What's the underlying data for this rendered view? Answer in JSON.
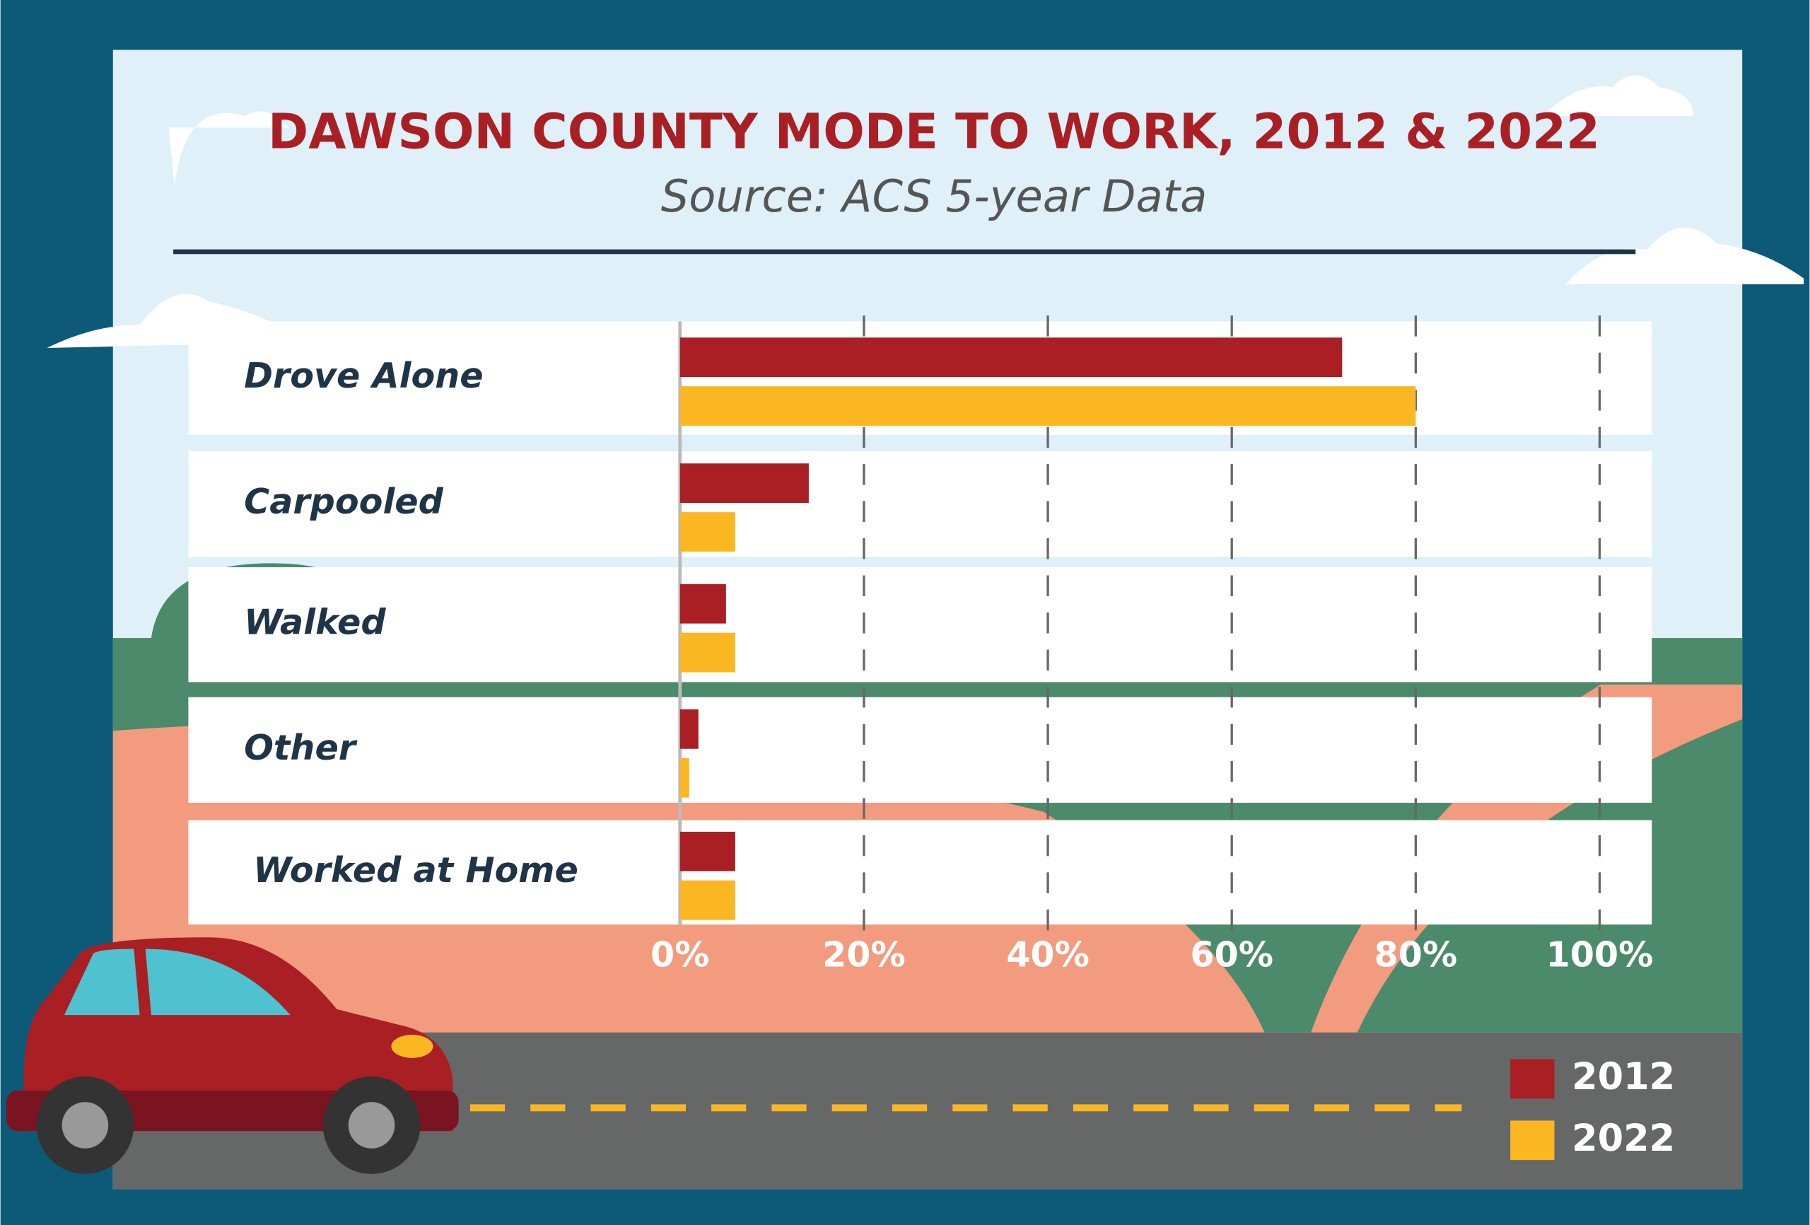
{
  "chart_data": {
    "type": "bar",
    "orientation": "horizontal",
    "title": "DAWSON COUNTY MODE TO WORK, 2012 & 2022",
    "subtitle": "Source: ACS 5-year Data",
    "categories": [
      "Drove Alone",
      "Carpooled",
      "Walked",
      "Other",
      "Worked at Home"
    ],
    "series": [
      {
        "name": "2012",
        "color": "#a91f24",
        "values": [
          72,
          14,
          5,
          2,
          6
        ]
      },
      {
        "name": "2022",
        "color": "#fbb721",
        "values": [
          80,
          6,
          6,
          1,
          6
        ]
      }
    ],
    "xlim": [
      0,
      100
    ],
    "xticks": [
      {
        "value": 0,
        "label": "0%"
      },
      {
        "value": 20,
        "label": "20%"
      },
      {
        "value": 40,
        "label": "40%"
      },
      {
        "value": 60,
        "label": "60%"
      },
      {
        "value": 80,
        "label": "80%"
      },
      {
        "value": 100,
        "label": "100%"
      }
    ],
    "grid": true,
    "legend": "bottom-right"
  }
}
